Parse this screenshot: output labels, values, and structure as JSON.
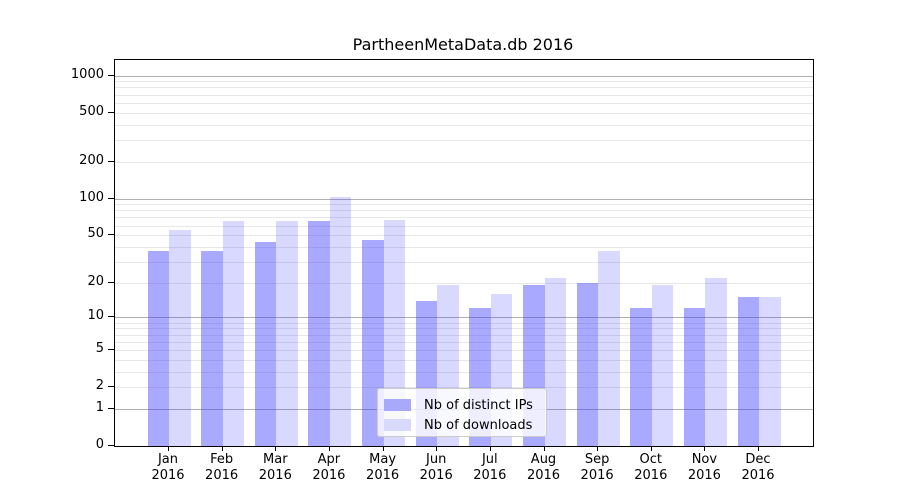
{
  "title": "PartheenMetaData.db 2016",
  "chart_data": {
    "type": "bar",
    "title": "PartheenMetaData.db 2016",
    "categories": [
      "Jan 2016",
      "Feb 2016",
      "Mar 2016",
      "Apr 2016",
      "May 2016",
      "Jun 2016",
      "Jul 2016",
      "Aug 2016",
      "Sep 2016",
      "Oct 2016",
      "Nov 2016",
      "Dec 2016"
    ],
    "series": [
      {
        "name": "Nb of distinct IPs",
        "values": [
          37,
          37,
          44,
          66,
          46,
          14,
          12,
          19,
          20,
          12,
          12,
          15
        ],
        "fill": "rgba(64,64,255,0.45)",
        "legend_swatch": "#a9a9fb"
      },
      {
        "name": "Nb of downloads",
        "values": [
          55,
          65,
          65,
          103,
          67,
          19,
          16,
          22,
          37,
          19,
          22,
          15
        ],
        "fill": "rgba(64,64,255,0.20)",
        "legend_swatch": "#d9d9fb"
      }
    ],
    "xlabel": "",
    "ylabel": "",
    "yscale": "log1p",
    "ylim": [
      0,
      1335
    ],
    "yticks": [
      0,
      1,
      2,
      5,
      10,
      20,
      50,
      100,
      200,
      500,
      1000
    ],
    "grid": {
      "on": true,
      "major_at": [
        1,
        10,
        100,
        1000
      ],
      "major_color": "#b0b0b0",
      "minor_color": "#e7e7e7"
    },
    "legend_position": "lower-center-inside",
    "bar_group": "pairs, IPs left / downloads right, touching"
  }
}
